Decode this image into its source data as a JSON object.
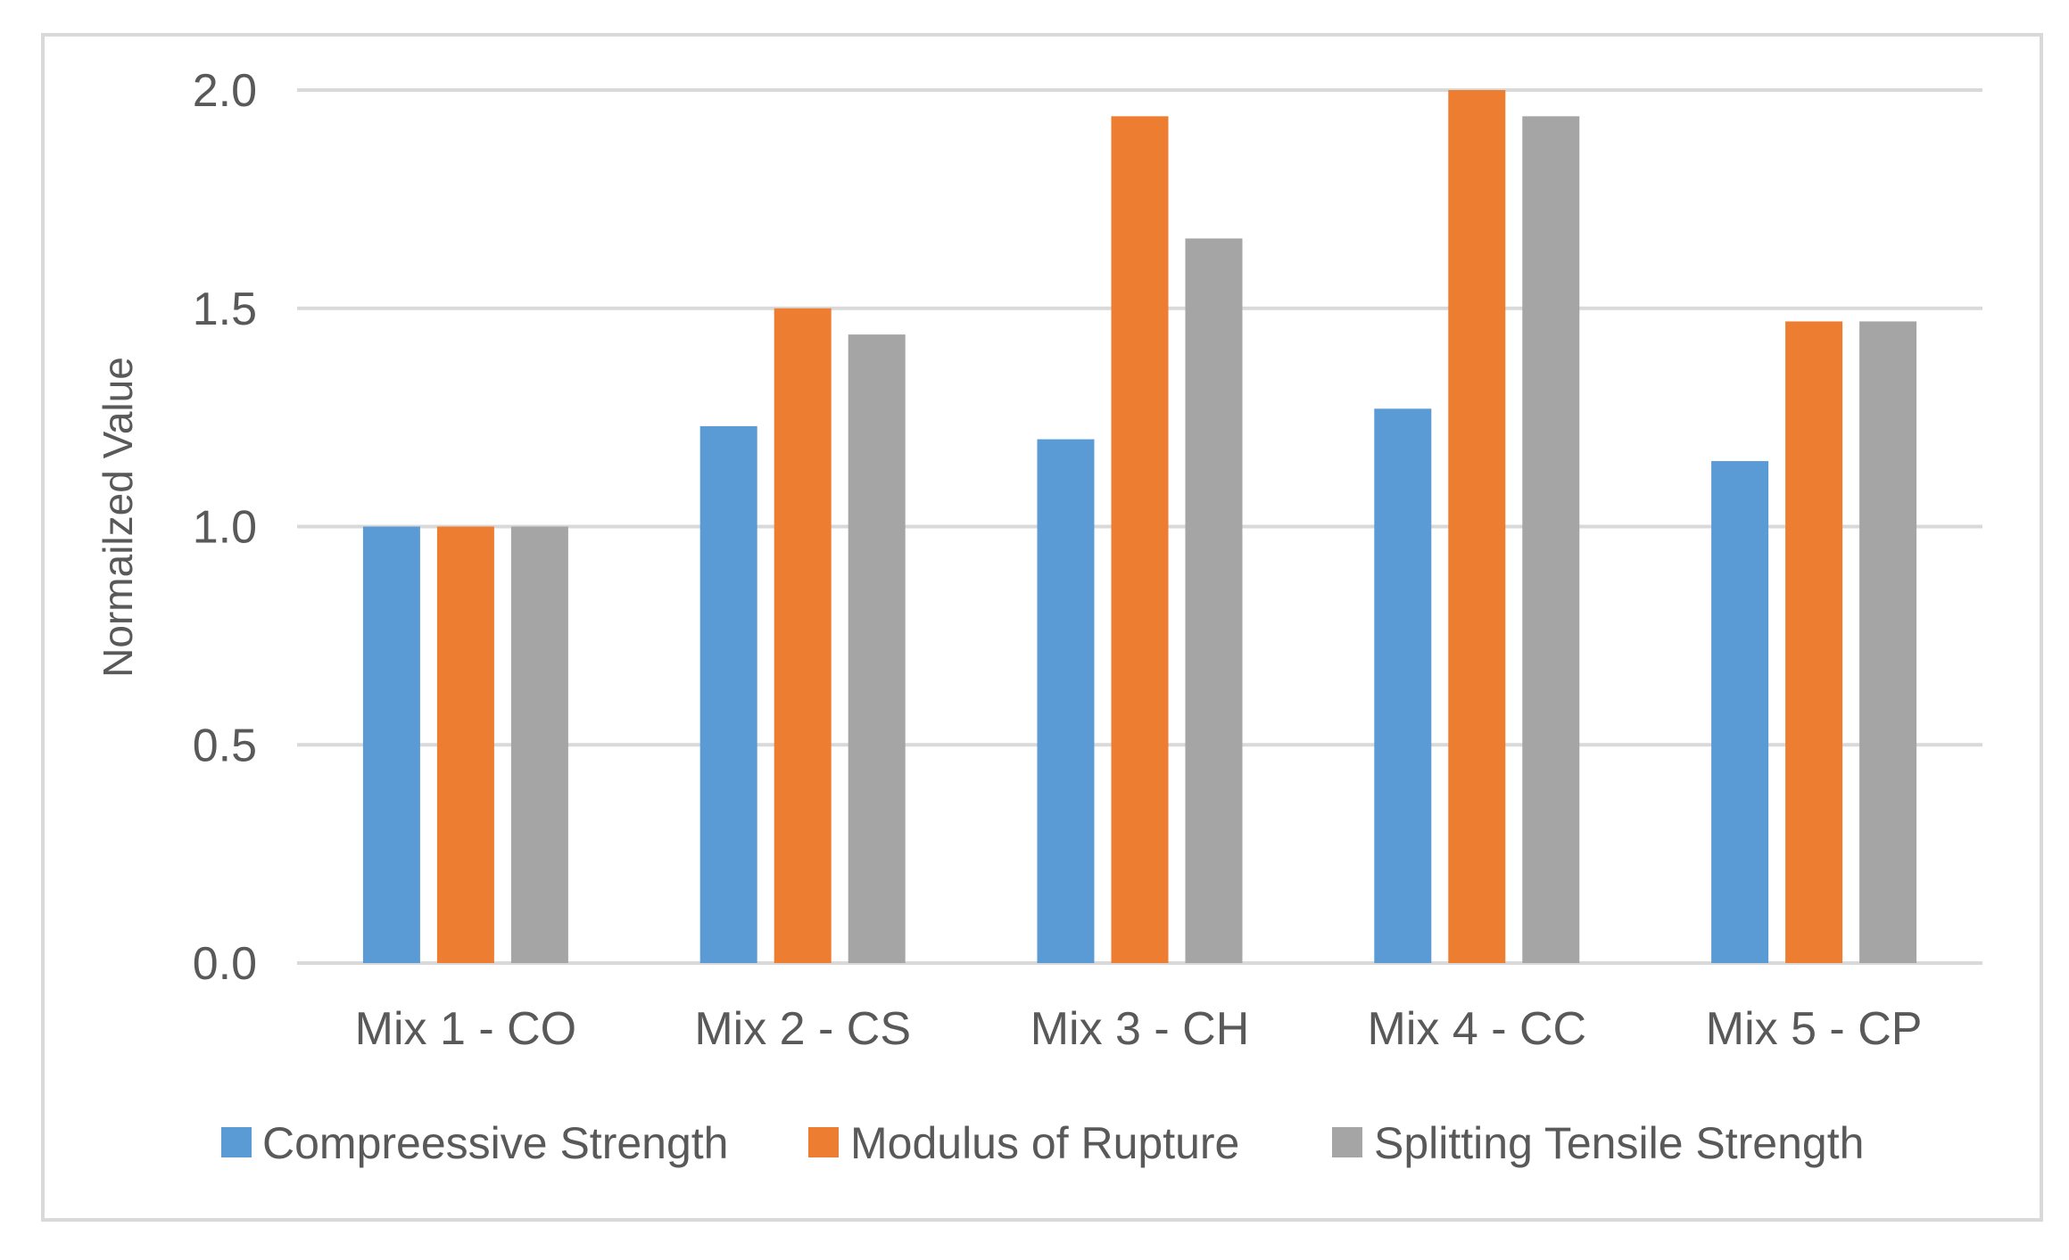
{
  "chart_data": {
    "type": "bar",
    "title": "",
    "xlabel": "",
    "ylabel": "Normailzed Value",
    "ylim": [
      0,
      2.0
    ],
    "yticks": [
      "0.0",
      "0.5",
      "1.0",
      "1.5",
      "2.0"
    ],
    "grid": true,
    "legend_position": "bottom",
    "categories": [
      "Mix 1 - CO",
      "Mix 2 - CS",
      "Mix 3 - CH",
      "Mix 4 - CC",
      "Mix 5 - CP"
    ],
    "series": [
      {
        "name": "Compreessive Strength",
        "color": "#5b9bd5",
        "values": [
          1.0,
          1.23,
          1.2,
          1.27,
          1.15
        ]
      },
      {
        "name": "Modulus of Rupture",
        "color": "#ed7d31",
        "values": [
          1.0,
          1.5,
          1.94,
          2.0,
          1.47
        ]
      },
      {
        "name": "Splitting Tensile Strength",
        "color": "#a5a5a5",
        "values": [
          1.0,
          1.44,
          1.66,
          1.94,
          1.47
        ]
      }
    ]
  }
}
